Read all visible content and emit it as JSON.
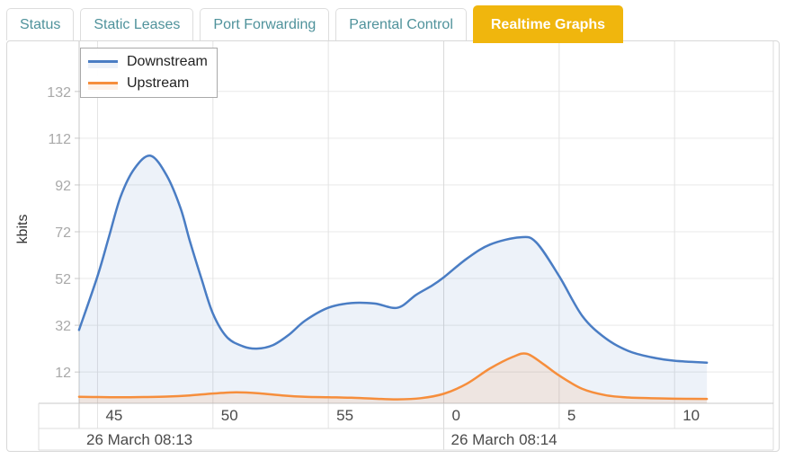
{
  "tabs": [
    {
      "label": "Status",
      "active": false
    },
    {
      "label": "Static Leases",
      "active": false
    },
    {
      "label": "Port Forwarding",
      "active": false
    },
    {
      "label": "Parental Control",
      "active": false
    },
    {
      "label": "Realtime Graphs",
      "active": true
    }
  ],
  "colors": {
    "active_tab_bg": "#f0b60d",
    "active_tab_text": "#ffffff",
    "tab_text": "#4f929b",
    "downstream": "#4a7dc4",
    "upstream": "#f68e3c"
  },
  "chart_data": {
    "type": "area",
    "title": "",
    "ylabel": "kbits",
    "grid": true,
    "legend_position": "top-left",
    "ylim": [
      0,
      152
    ],
    "y_ticks": [
      12,
      32,
      52,
      72,
      92,
      112,
      132
    ],
    "x_axis": {
      "t_unit": "minutes after 08:13:00 (60+ means 08:14)",
      "range_t": [
        44.2,
        71.4
      ],
      "ticks": [
        {
          "t": 45,
          "label": "45"
        },
        {
          "t": 50,
          "label": "50"
        },
        {
          "t": 55,
          "label": "55"
        },
        {
          "t": 60,
          "label": "0"
        },
        {
          "t": 65,
          "label": "5"
        },
        {
          "t": 70,
          "label": "10"
        }
      ],
      "date_groups": [
        {
          "label": "26 March 08:13",
          "start_t": 44.2
        },
        {
          "label": "26 March 08:14",
          "start_t": 60
        }
      ]
    },
    "series": [
      {
        "name": "Downstream",
        "color": "#4a7dc4",
        "fill": "rgba(74,125,196,0.10)",
        "points": [
          [
            44.2,
            30
          ],
          [
            45,
            53
          ],
          [
            45.5,
            70
          ],
          [
            46,
            87
          ],
          [
            46.6,
            99
          ],
          [
            47.3,
            104.5
          ],
          [
            48,
            96
          ],
          [
            48.6,
            82
          ],
          [
            49,
            68
          ],
          [
            49.5,
            52
          ],
          [
            50,
            37
          ],
          [
            50.6,
            27
          ],
          [
            51.3,
            23
          ],
          [
            51.9,
            22
          ],
          [
            52.6,
            23.5
          ],
          [
            53.3,
            28
          ],
          [
            54,
            34
          ],
          [
            55,
            39.5
          ],
          [
            56,
            41.5
          ],
          [
            57,
            41.3
          ],
          [
            58,
            39.5
          ],
          [
            58.8,
            45
          ],
          [
            59.5,
            49
          ],
          [
            60,
            52.5
          ],
          [
            61,
            60.5
          ],
          [
            62,
            66.5
          ],
          [
            63.3,
            69.6
          ],
          [
            64,
            67.5
          ],
          [
            65,
            53
          ],
          [
            66,
            36
          ],
          [
            67,
            26.5
          ],
          [
            68,
            21
          ],
          [
            69,
            18.3
          ],
          [
            70,
            16.8
          ],
          [
            71.4,
            16
          ]
        ]
      },
      {
        "name": "Upstream",
        "color": "#f68e3c",
        "fill": "rgba(246,142,60,0.12)",
        "points": [
          [
            44.2,
            1.4
          ],
          [
            45,
            1.3
          ],
          [
            46,
            1.2
          ],
          [
            47,
            1.3
          ],
          [
            48,
            1.5
          ],
          [
            49,
            2
          ],
          [
            50,
            2.8
          ],
          [
            51,
            3.3
          ],
          [
            52,
            2.9
          ],
          [
            53,
            2
          ],
          [
            54,
            1.4
          ],
          [
            55,
            1.2
          ],
          [
            56,
            1
          ],
          [
            57,
            0.6
          ],
          [
            58,
            0.3
          ],
          [
            59,
            0.8
          ],
          [
            60,
            2.7
          ],
          [
            61,
            7
          ],
          [
            62,
            13.5
          ],
          [
            63,
            18.5
          ],
          [
            63.6,
            19.8
          ],
          [
            64.3,
            15.5
          ],
          [
            65,
            10.5
          ],
          [
            66,
            4.8
          ],
          [
            67,
            2.1
          ],
          [
            68,
            1.1
          ],
          [
            69,
            0.8
          ],
          [
            70,
            0.6
          ],
          [
            71.4,
            0.5
          ]
        ]
      }
    ]
  }
}
